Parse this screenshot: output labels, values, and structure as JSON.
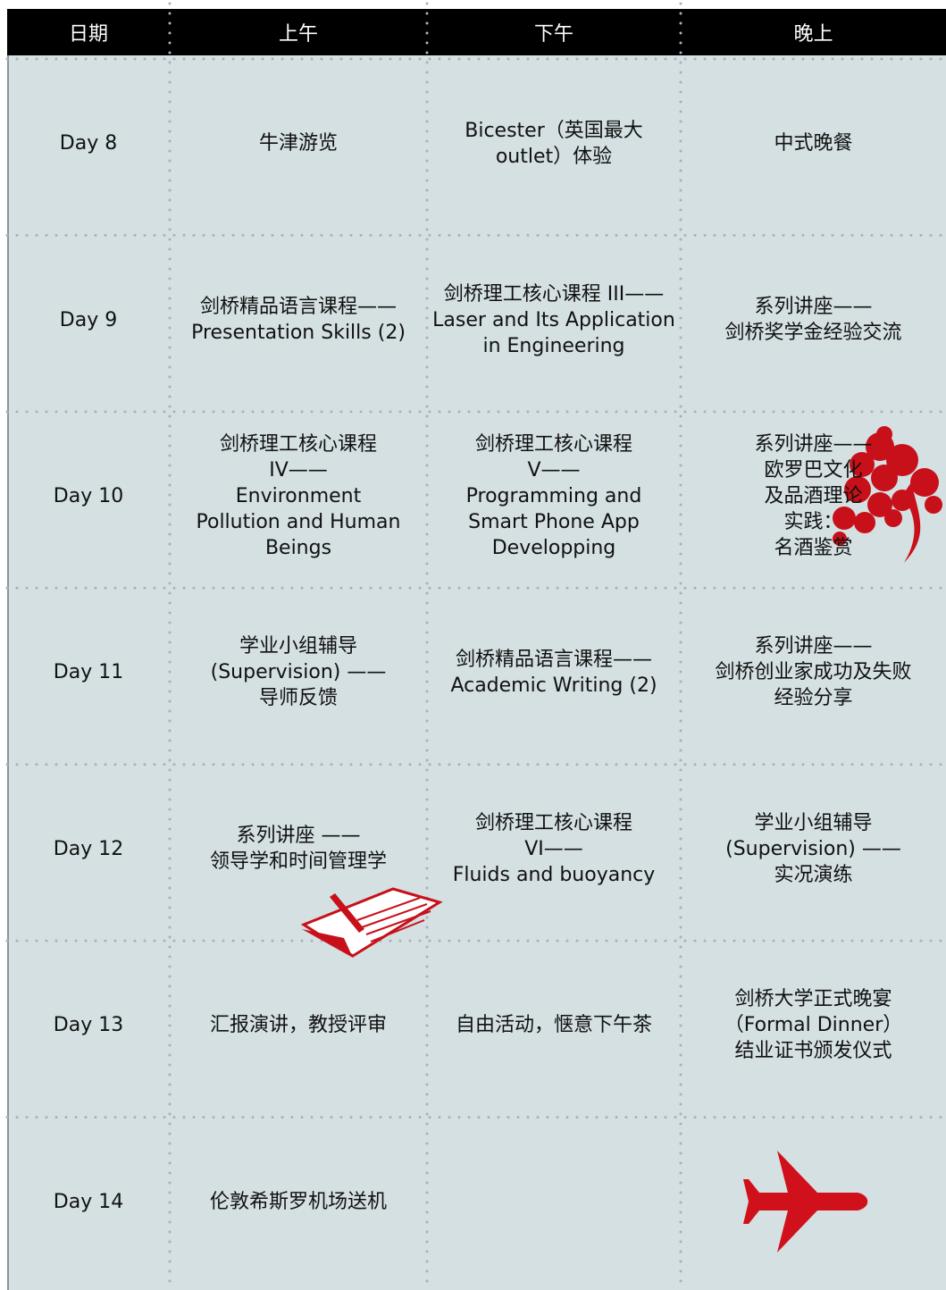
{
  "table": {
    "header": [
      "日期",
      "上午",
      "下午",
      "晚上"
    ],
    "rows": [
      [
        [
          "Day 8"
        ],
        [
          "牛津游览"
        ],
        [
          "Bicester（英国最大",
          "outlet）体验"
        ],
        [
          "中式晚餐"
        ]
      ],
      [
        [
          "Day 9"
        ],
        [
          "剑桥精品语言课程——",
          "Presentation Skills (2)"
        ],
        [
          "剑桥理工核心课程 III——",
          "Laser and Its Application",
          "in Engineering"
        ],
        [
          "系列讲座——",
          "剑桥奖学金经验交流"
        ]
      ],
      [
        [
          "Day 10"
        ],
        [
          "剑桥理工核心课程",
          "IV——",
          "Environment",
          "Pollution and Human",
          "Beings"
        ],
        [
          "剑桥理工核心课程",
          "V——",
          "Programming and",
          "Smart Phone App",
          "Developping"
        ],
        [
          "系列讲座——",
          "欧罗巴文化",
          "及品酒理论",
          "实践：",
          "名酒鉴赏"
        ]
      ],
      [
        [
          "Day 11"
        ],
        [
          "学业小组辅导",
          "(Supervision) ——",
          "导师反馈"
        ],
        [
          "剑桥精品语言课程——",
          "Academic Writing (2)"
        ],
        [
          "系列讲座——",
          "剑桥创业家成功及失败",
          "经验分享"
        ]
      ],
      [
        [
          "Day 12"
        ],
        [
          "系列讲座 ——",
          "领导学和时间管理学"
        ],
        [
          "剑桥理工核心课程",
          "VI——",
          "Fluids and buoyancy"
        ],
        [
          "学业小组辅导",
          "(Supervision) ——",
          "实况演练"
        ]
      ],
      [
        [
          "Day 13"
        ],
        [
          "汇报演讲，教授评审"
        ],
        [
          "自由活动，惬意下午茶"
        ],
        [
          "剑桥大学正式晚宴",
          "（Formal Dinner）",
          "结业证书颁发仪式"
        ]
      ],
      [
        [
          "Day 14"
        ],
        [
          "伦敦希斯罗机场送机"
        ],
        [],
        []
      ]
    ]
  }
}
